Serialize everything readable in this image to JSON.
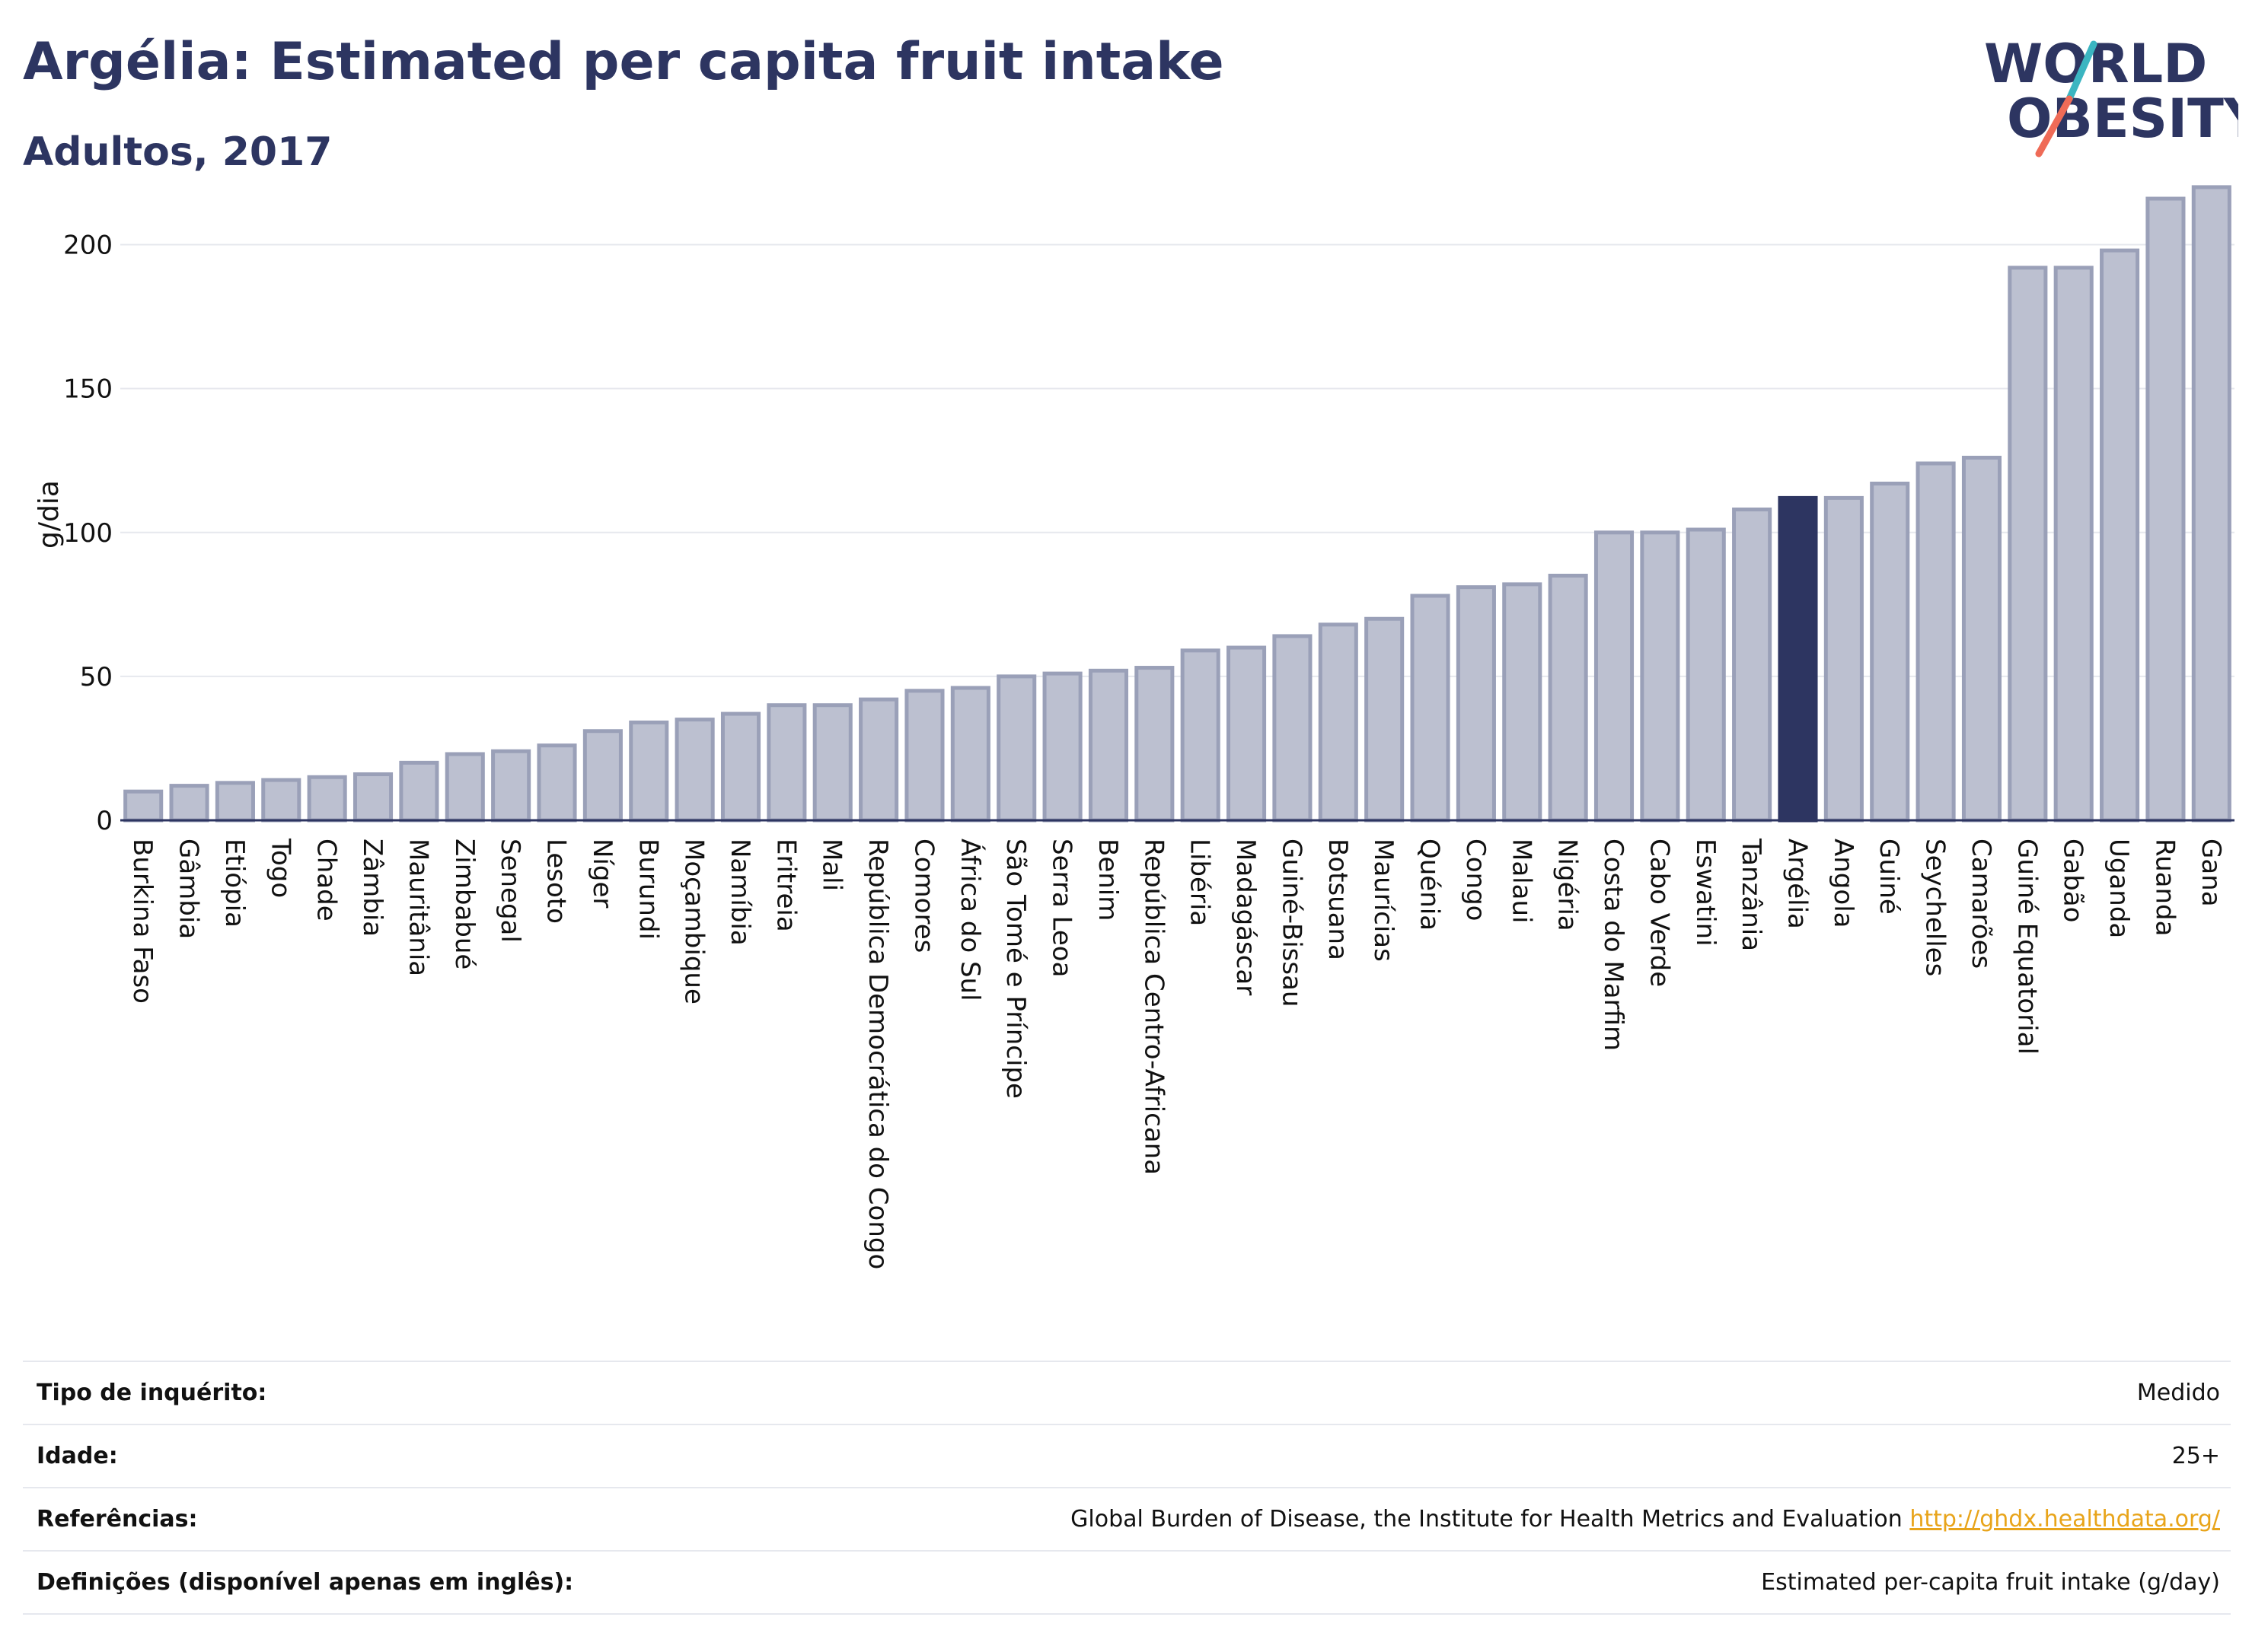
{
  "header": {
    "title": "Argélia: Estimated per capita fruit intake",
    "subtitle": "Adultos, 2017"
  },
  "logo": {
    "line1": "WORLD",
    "line2": "OBESITY"
  },
  "colors": {
    "bar_fill": "#bcc0d0",
    "bar_stroke": "#9aa0b8",
    "highlight": "#2d3561",
    "grid": "#e6e8ee",
    "text": "#2d3561",
    "link": "#e8a41a"
  },
  "chart_data": {
    "type": "bar",
    "ylabel": "g/dia",
    "ylim": [
      0,
      225
    ],
    "yticks": [
      0,
      50,
      100,
      150,
      200
    ],
    "grid": true,
    "highlight_category": "Argélia",
    "categories": [
      "Burkina Faso",
      "Gâmbia",
      "Etiópia",
      "Togo",
      "Chade",
      "Zâmbia",
      "Mauritânia",
      "Zimbabué",
      "Senegal",
      "Lesoto",
      "Níger",
      "Burundi",
      "Moçambique",
      "Namíbia",
      "Eritreia",
      "Mali",
      "República Democrática do Congo",
      "Comores",
      "África do Sul",
      "São Tomé e Príncipe",
      "Serra Leoa",
      "Benim",
      "República Centro-Africana",
      "Libéria",
      "Madagáscar",
      "Guiné-Bissau",
      "Botsuana",
      "Maurícias",
      "Quénia",
      "Congo",
      "Malaui",
      "Nigéria",
      "Costa do Marfim",
      "Cabo Verde",
      "Eswatini",
      "Tanzânia",
      "Argélia",
      "Angola",
      "Guiné",
      "Seychelles",
      "Camarões",
      "Guiné Equatorial",
      "Gabão",
      "Uganda",
      "Ruanda",
      "Gana"
    ],
    "values": [
      10,
      12,
      13,
      14,
      15,
      16,
      20,
      23,
      24,
      26,
      31,
      34,
      35,
      37,
      40,
      40,
      42,
      45,
      46,
      50,
      51,
      52,
      53,
      59,
      60,
      64,
      68,
      70,
      78,
      81,
      82,
      85,
      100,
      100,
      101,
      108,
      112,
      112,
      117,
      124,
      126,
      192,
      192,
      198,
      216,
      220
    ]
  },
  "info": [
    {
      "key": "Tipo de inquérito:",
      "value": "Medido",
      "link": ""
    },
    {
      "key": "Idade:",
      "value": "25+",
      "link": ""
    },
    {
      "key": "Referências:",
      "value": "Global Burden of Disease, the Institute for Health Metrics and Evaluation ",
      "link": "http://ghdx.healthdata.org/"
    },
    {
      "key": "Definições (disponível apenas em inglês):",
      "value": "Estimated per-capita fruit intake (g/day)",
      "link": ""
    }
  ]
}
